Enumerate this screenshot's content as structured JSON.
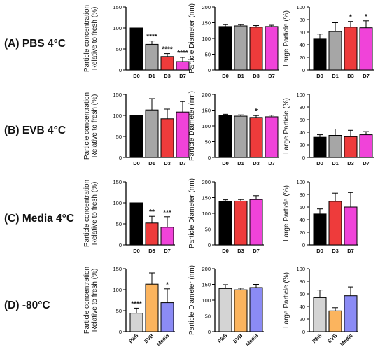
{
  "colors": {
    "D0": "#000000",
    "D1": "#a6a6a6",
    "D3": "#ee3b3b",
    "D7": "#f043d9",
    "PBS": "#d4d4d4",
    "EVB": "#fbb45e",
    "Media": "#8b8bf5"
  },
  "rows": [
    {
      "label": "(A) PBS 4°C"
    },
    {
      "label": "(B) EVB 4°C"
    },
    {
      "label": "(C) Media 4°C"
    },
    {
      "label": "(D) -80°C"
    }
  ],
  "chart_data": [
    {
      "type": "bar",
      "row": 0,
      "col": 0,
      "categories": [
        "D0",
        "D1",
        "D3",
        "D7"
      ],
      "values": [
        100,
        61,
        32,
        20
      ],
      "errors": [
        0,
        8,
        7,
        10
      ],
      "annotations": [
        "",
        "****",
        "****",
        "****"
      ],
      "ylabel": "Particle concentration\nRelative to fresh (%)",
      "ylim": [
        0,
        150
      ],
      "yticks": [
        0,
        50,
        100,
        150
      ]
    },
    {
      "type": "bar",
      "row": 0,
      "col": 1,
      "categories": [
        "D0",
        "D1",
        "D3",
        "D7"
      ],
      "values": [
        138,
        140,
        136,
        138
      ],
      "errors": [
        6,
        4,
        5,
        4
      ],
      "annotations": [
        "",
        "",
        "",
        ""
      ],
      "ylabel": "Particle Diameter (nm)",
      "ylim": [
        0,
        200
      ],
      "yticks": [
        0,
        50,
        100,
        150,
        200
      ]
    },
    {
      "type": "bar",
      "row": 0,
      "col": 2,
      "categories": [
        "D0",
        "D1",
        "D3",
        "D7"
      ],
      "values": [
        49,
        61,
        68,
        67
      ],
      "errors": [
        8,
        14,
        9,
        11
      ],
      "annotations": [
        "",
        "",
        "*",
        "*"
      ],
      "ylabel": "Large Particle (%)",
      "ylim": [
        0,
        100
      ],
      "yticks": [
        0,
        20,
        40,
        60,
        80,
        100
      ]
    },
    {
      "type": "bar",
      "row": 1,
      "col": 0,
      "categories": [
        "D0",
        "D1",
        "D3",
        "D7"
      ],
      "values": [
        100,
        113,
        92,
        108
      ],
      "errors": [
        0,
        27,
        23,
        25
      ],
      "annotations": [
        "",
        "",
        "",
        ""
      ],
      "ylabel": "Particle concentration\nRelative to fresh (%)",
      "ylim": [
        0,
        150
      ],
      "yticks": [
        0,
        50,
        100,
        150
      ]
    },
    {
      "type": "bar",
      "row": 1,
      "col": 1,
      "categories": [
        "D0",
        "D1",
        "D3",
        "D7"
      ],
      "values": [
        133,
        131,
        127,
        129
      ],
      "errors": [
        4,
        4,
        6,
        5
      ],
      "annotations": [
        "",
        "",
        "*",
        ""
      ],
      "ylabel": "Particle Diameter (nm)",
      "ylim": [
        0,
        200
      ],
      "yticks": [
        0,
        50,
        100,
        150,
        200
      ]
    },
    {
      "type": "bar",
      "row": 1,
      "col": 2,
      "categories": [
        "D0",
        "D1",
        "D3",
        "D7"
      ],
      "values": [
        32,
        35,
        33,
        36
      ],
      "errors": [
        4,
        10,
        10,
        5
      ],
      "annotations": [
        "",
        "",
        "",
        ""
      ],
      "ylabel": "Large Particle (%)",
      "ylim": [
        0,
        100
      ],
      "yticks": [
        0,
        20,
        40,
        60,
        80,
        100
      ]
    },
    {
      "type": "bar",
      "row": 2,
      "col": 0,
      "categories": [
        "D0",
        "D3",
        "D7"
      ],
      "values": [
        100,
        52,
        42
      ],
      "errors": [
        0,
        16,
        25
      ],
      "annotations": [
        "",
        "**",
        "***"
      ],
      "ylabel": "Particle concentration\nRelative to fresh (%)",
      "ylim": [
        0,
        150
      ],
      "yticks": [
        0,
        50,
        100,
        150
      ]
    },
    {
      "type": "bar",
      "row": 2,
      "col": 1,
      "categories": [
        "D0",
        "D3",
        "D7"
      ],
      "values": [
        138,
        139,
        144
      ],
      "errors": [
        5,
        5,
        12
      ],
      "annotations": [
        "",
        "",
        ""
      ],
      "ylabel": "Particle Diameter (nm)",
      "ylim": [
        0,
        200
      ],
      "yticks": [
        0,
        50,
        100,
        150,
        200
      ]
    },
    {
      "type": "bar",
      "row": 2,
      "col": 2,
      "categories": [
        "D0",
        "D3",
        "D7"
      ],
      "values": [
        49,
        69,
        60
      ],
      "errors": [
        8,
        13,
        23
      ],
      "annotations": [
        "",
        "",
        ""
      ],
      "ylabel": "Large Particle (%)",
      "ylim": [
        0,
        100
      ],
      "yticks": [
        0,
        20,
        40,
        60,
        80,
        100
      ]
    },
    {
      "type": "bar",
      "row": 3,
      "col": 0,
      "categories": [
        "PBS",
        "EVB",
        "Media"
      ],
      "values": [
        44,
        113,
        69
      ],
      "errors": [
        12,
        27,
        33
      ],
      "annotations": [
        "****",
        "",
        "*"
      ],
      "ylabel": "Particle concentration\nRelative to fresh (%)",
      "ylim": [
        0,
        150
      ],
      "yticks": [
        0,
        50,
        100,
        150
      ]
    },
    {
      "type": "bar",
      "row": 3,
      "col": 1,
      "categories": [
        "PBS",
        "EVB",
        "Media"
      ],
      "values": [
        137,
        133,
        140
      ],
      "errors": [
        12,
        5,
        10
      ],
      "annotations": [
        "",
        "",
        ""
      ],
      "ylabel": "Particle Diameter (nm)",
      "ylim": [
        0,
        200
      ],
      "yticks": [
        0,
        50,
        100,
        150,
        200
      ]
    },
    {
      "type": "bar",
      "row": 3,
      "col": 2,
      "categories": [
        "PBS",
        "EVB",
        "Media"
      ],
      "values": [
        54,
        33,
        57
      ],
      "errors": [
        12,
        5,
        14
      ],
      "annotations": [
        "",
        "",
        ""
      ],
      "ylabel": "Large Particle (%)",
      "ylim": [
        0,
        100
      ],
      "yticks": [
        0,
        20,
        40,
        60,
        80,
        100
      ]
    }
  ]
}
